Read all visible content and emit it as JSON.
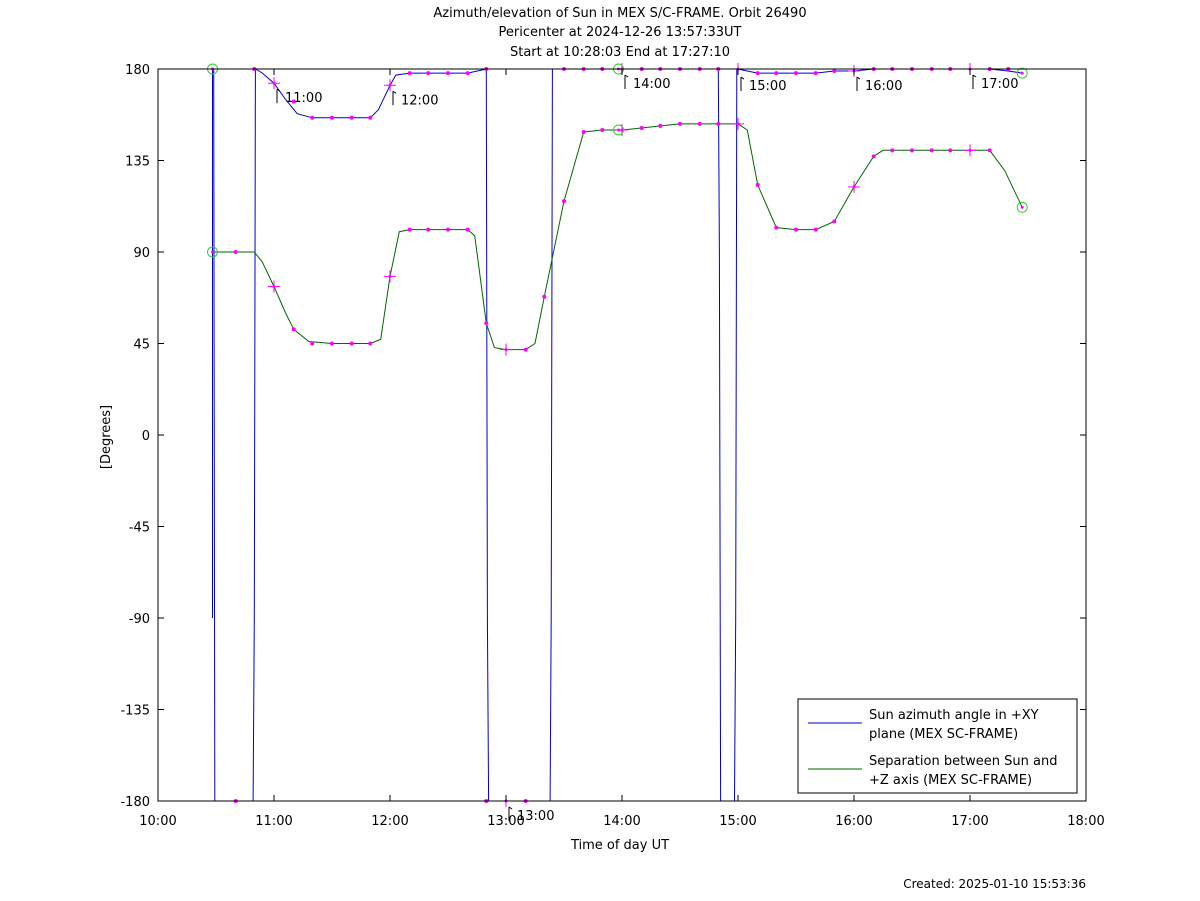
{
  "title_lines": [
    "Azimuth/elevation of Sun in MEX S/C-FRAME.  Orbit 26490",
    "Pericenter at 2024-12-26 13:57:33UT",
    "Start at 10:28:03 End at 17:27:10"
  ],
  "footer": "Created: 2025-01-10 15:53:36",
  "chart_data": {
    "type": "line",
    "xlabel": "Time of day UT",
    "ylabel": "[Degrees]",
    "xlim": [
      10.0,
      18.0
    ],
    "ylim": [
      -180,
      180
    ],
    "x_ticks": [
      10,
      11,
      12,
      13,
      14,
      15,
      16,
      17,
      18
    ],
    "x_tick_labels": [
      "10:00",
      "11:00",
      "12:00",
      "13:00",
      "14:00",
      "15:00",
      "16:00",
      "17:00",
      "18:00"
    ],
    "y_ticks": [
      -180,
      -135,
      -90,
      -45,
      0,
      45,
      90,
      135,
      180
    ],
    "y_tick_labels": [
      "-180",
      "-135",
      "-90",
      "-45",
      "0",
      "45",
      "90",
      "135",
      "180"
    ],
    "legend_position": "bottom-right",
    "colors": {
      "azimuth": "#0000cc",
      "separation": "#006600",
      "markers": "#ff00ff",
      "endpoints": "#33cc33"
    },
    "series": [
      {
        "name": "Sun azimuth angle in +XY plane (MEX SC-FRAME)",
        "legend_lines": [
          "Sun azimuth angle in +XY",
          "plane (MEX SC-FRAME)"
        ],
        "color": "#0000cc",
        "points": [
          [
            10.47,
            -90
          ],
          [
            10.47,
            180
          ],
          [
            10.48,
            180
          ],
          [
            10.49,
            -180
          ],
          [
            10.82,
            -180
          ],
          [
            10.83,
            -90
          ],
          [
            10.84,
            180
          ],
          [
            10.9,
            178
          ],
          [
            11.0,
            173
          ],
          [
            11.1,
            165
          ],
          [
            11.2,
            158
          ],
          [
            11.33,
            156
          ],
          [
            11.5,
            156
          ],
          [
            11.67,
            156
          ],
          [
            11.83,
            156
          ],
          [
            11.9,
            160
          ],
          [
            12.0,
            172
          ],
          [
            12.05,
            177
          ],
          [
            12.17,
            178
          ],
          [
            12.33,
            178
          ],
          [
            12.5,
            178
          ],
          [
            12.67,
            178
          ],
          [
            12.83,
            180
          ],
          [
            12.84,
            -90
          ],
          [
            12.85,
            -180
          ],
          [
            13.0,
            -180
          ],
          [
            13.17,
            -180
          ],
          [
            13.38,
            -180
          ],
          [
            13.39,
            -90
          ],
          [
            13.4,
            180
          ],
          [
            13.5,
            180
          ],
          [
            13.67,
            180
          ],
          [
            13.83,
            180
          ],
          [
            14.0,
            180
          ],
          [
            14.17,
            180
          ],
          [
            14.33,
            180
          ],
          [
            14.5,
            180
          ],
          [
            14.67,
            180
          ],
          [
            14.83,
            180
          ],
          [
            14.84,
            90
          ],
          [
            14.85,
            -180
          ],
          [
            14.97,
            -180
          ],
          [
            14.98,
            -90
          ],
          [
            14.99,
            180
          ],
          [
            15.0,
            180
          ],
          [
            15.08,
            179
          ],
          [
            15.17,
            178
          ],
          [
            15.33,
            178
          ],
          [
            15.5,
            178
          ],
          [
            15.67,
            178
          ],
          [
            15.83,
            179
          ],
          [
            16.0,
            179
          ],
          [
            16.17,
            180
          ],
          [
            16.33,
            180
          ],
          [
            16.5,
            180
          ],
          [
            16.67,
            180
          ],
          [
            16.83,
            180
          ],
          [
            17.0,
            180
          ],
          [
            17.17,
            180
          ],
          [
            17.33,
            179
          ],
          [
            17.45,
            178
          ]
        ]
      },
      {
        "name": "Separation between Sun and +Z axis (MEX SC-FRAME)",
        "legend_lines": [
          "Separation between Sun and",
          "+Z axis (MEX SC-FRAME)"
        ],
        "color": "#006600",
        "points": [
          [
            10.47,
            90
          ],
          [
            10.67,
            90
          ],
          [
            10.83,
            90
          ],
          [
            10.9,
            85
          ],
          [
            11.0,
            73
          ],
          [
            11.1,
            60
          ],
          [
            11.17,
            52
          ],
          [
            11.3,
            46
          ],
          [
            11.5,
            45
          ],
          [
            11.67,
            45
          ],
          [
            11.83,
            45
          ],
          [
            11.92,
            47
          ],
          [
            12.0,
            78
          ],
          [
            12.08,
            100
          ],
          [
            12.17,
            101
          ],
          [
            12.33,
            101
          ],
          [
            12.5,
            101
          ],
          [
            12.67,
            101
          ],
          [
            12.73,
            98
          ],
          [
            12.83,
            55
          ],
          [
            12.9,
            43
          ],
          [
            13.0,
            42
          ],
          [
            13.17,
            42
          ],
          [
            13.25,
            45
          ],
          [
            13.33,
            68
          ],
          [
            13.5,
            115
          ],
          [
            13.67,
            149
          ],
          [
            13.83,
            150
          ],
          [
            14.0,
            150
          ],
          [
            14.17,
            151
          ],
          [
            14.33,
            152
          ],
          [
            14.5,
            153
          ],
          [
            14.67,
            153
          ],
          [
            14.83,
            153
          ],
          [
            15.0,
            153
          ],
          [
            15.08,
            150
          ],
          [
            15.17,
            123
          ],
          [
            15.33,
            102
          ],
          [
            15.5,
            101
          ],
          [
            15.67,
            101
          ],
          [
            15.83,
            105
          ],
          [
            16.0,
            122
          ],
          [
            16.17,
            137
          ],
          [
            16.25,
            140
          ],
          [
            16.5,
            140
          ],
          [
            16.67,
            140
          ],
          [
            16.83,
            140
          ],
          [
            17.0,
            140
          ],
          [
            17.17,
            140
          ],
          [
            17.3,
            130
          ],
          [
            17.45,
            112
          ]
        ]
      }
    ],
    "hour_markers": [
      {
        "label": "11:00",
        "x": 11.0,
        "y": 173
      },
      {
        "label": "12:00",
        "x": 12.0,
        "y": 172
      },
      {
        "label": "13:00",
        "x": 13.0,
        "y": -180
      },
      {
        "label": "14:00",
        "x": 14.0,
        "y": 180
      },
      {
        "label": "15:00",
        "x": 15.0,
        "y": 179
      },
      {
        "label": "16:00",
        "x": 16.0,
        "y": 179
      },
      {
        "label": "17:00",
        "x": 17.0,
        "y": 180
      }
    ],
    "cross_markers": [
      [
        11.0,
        173
      ],
      [
        12.0,
        172
      ],
      [
        14.0,
        180
      ],
      [
        15.0,
        180
      ],
      [
        16.0,
        179
      ],
      [
        17.0,
        180
      ],
      [
        11.0,
        73
      ],
      [
        12.0,
        78
      ],
      [
        13.0,
        42
      ],
      [
        14.0,
        150
      ],
      [
        15.0,
        153
      ],
      [
        16.0,
        122
      ],
      [
        17.0,
        140
      ],
      [
        13.0,
        -180
      ]
    ],
    "dot_markers": [
      [
        10.67,
        90
      ],
      [
        11.17,
        52
      ],
      [
        11.33,
        45
      ],
      [
        11.5,
        45
      ],
      [
        11.67,
        45
      ],
      [
        11.83,
        45
      ],
      [
        12.17,
        101
      ],
      [
        12.33,
        101
      ],
      [
        12.5,
        101
      ],
      [
        12.67,
        101
      ],
      [
        12.83,
        55
      ],
      [
        13.17,
        42
      ],
      [
        13.33,
        68
      ],
      [
        13.5,
        115
      ],
      [
        13.67,
        149
      ],
      [
        13.83,
        150
      ],
      [
        14.17,
        151
      ],
      [
        14.33,
        152
      ],
      [
        14.5,
        153
      ],
      [
        14.67,
        153
      ],
      [
        14.83,
        153
      ],
      [
        15.17,
        123
      ],
      [
        15.33,
        102
      ],
      [
        15.5,
        101
      ],
      [
        15.67,
        101
      ],
      [
        15.83,
        105
      ],
      [
        16.17,
        137
      ],
      [
        16.33,
        140
      ],
      [
        16.5,
        140
      ],
      [
        16.67,
        140
      ],
      [
        16.83,
        140
      ],
      [
        17.17,
        140
      ],
      [
        10.67,
        -180
      ],
      [
        13.17,
        -180
      ],
      [
        12.83,
        -180
      ],
      [
        10.83,
        180
      ],
      [
        11.17,
        164
      ],
      [
        11.33,
        156
      ],
      [
        11.5,
        156
      ],
      [
        11.67,
        156
      ],
      [
        11.83,
        156
      ],
      [
        12.17,
        178
      ],
      [
        12.33,
        178
      ],
      [
        12.5,
        178
      ],
      [
        12.67,
        178
      ],
      [
        12.83,
        180
      ],
      [
        13.5,
        180
      ],
      [
        13.67,
        180
      ],
      [
        13.83,
        180
      ],
      [
        14.17,
        180
      ],
      [
        14.33,
        180
      ],
      [
        14.5,
        180
      ],
      [
        14.67,
        180
      ],
      [
        14.83,
        180
      ],
      [
        15.17,
        178
      ],
      [
        15.33,
        178
      ],
      [
        15.5,
        178
      ],
      [
        15.67,
        178
      ],
      [
        15.83,
        179
      ],
      [
        16.17,
        180
      ],
      [
        16.33,
        180
      ],
      [
        16.5,
        180
      ],
      [
        16.67,
        180
      ],
      [
        16.83,
        180
      ],
      [
        17.17,
        180
      ],
      [
        17.33,
        180
      ]
    ],
    "endpoint_markers": [
      [
        10.47,
        180
      ],
      [
        10.47,
        90
      ],
      [
        13.97,
        180
      ],
      [
        13.97,
        150
      ],
      [
        17.45,
        178
      ],
      [
        17.45,
        112
      ]
    ]
  }
}
